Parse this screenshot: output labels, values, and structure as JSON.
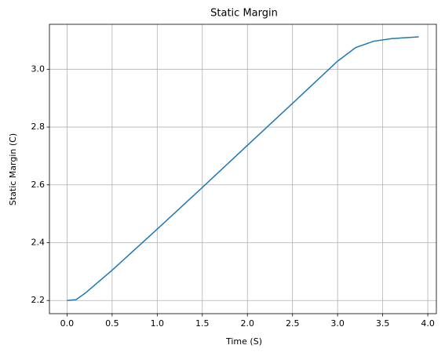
{
  "chart_data": {
    "type": "line",
    "title": "Static Margin",
    "x_label": "Time (S)",
    "y_label": "Static Margin (C)",
    "x": [
      0,
      0.1,
      0.2,
      0.5,
      1.0,
      1.5,
      2.0,
      2.5,
      3.0,
      3.2,
      3.4,
      3.6,
      3.9
    ],
    "series": [
      {
        "color": "#1f77b4",
        "values": [
          2.2,
          2.203,
          2.225,
          2.305,
          2.447,
          2.591,
          2.737,
          2.882,
          3.028,
          3.075,
          3.097,
          3.106,
          3.112
        ]
      }
    ],
    "xlim": [
      -0.195,
      4.095
    ],
    "xticks": [
      {
        "value": 0,
        "label": "0.0"
      },
      0.5,
      {
        "value": 1,
        "label": "1.0"
      },
      1.5,
      {
        "value": 2,
        "label": "2.0"
      },
      2.5,
      {
        "value": 3,
        "label": "3.0"
      },
      3.5,
      {
        "value": 4,
        "label": "4.0"
      }
    ],
    "ylim": [
      2.1545,
      3.1555
    ],
    "yticks": [
      2.2,
      2.4,
      2.6,
      2.8,
      {
        "value": 3,
        "label": "3.0"
      }
    ],
    "grid": true
  }
}
